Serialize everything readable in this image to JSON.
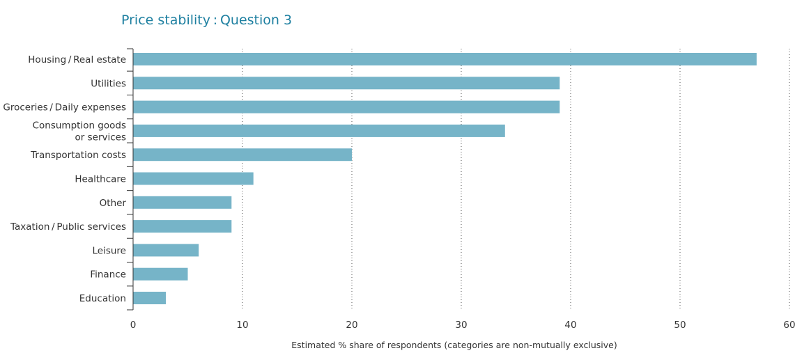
{
  "chart_data": {
    "type": "bar",
    "orientation": "horizontal",
    "title": "Price stability : Question 3",
    "xlabel": "Estimated % share of respondents (categories are non-mutually exclusive)",
    "ylabel": "",
    "categories": [
      [
        "Housing / Real estate"
      ],
      [
        "Utilities"
      ],
      [
        "Groceries / Daily expenses"
      ],
      [
        "Consumption goods",
        "or services"
      ],
      [
        "Transportation costs"
      ],
      [
        "Healthcare"
      ],
      [
        "Other"
      ],
      [
        "Taxation / Public services"
      ],
      [
        "Leisure"
      ],
      [
        "Finance"
      ],
      [
        "Education"
      ]
    ],
    "values": [
      57,
      39,
      39,
      34,
      20,
      11,
      9,
      9,
      6,
      5,
      3
    ],
    "xlim": [
      0,
      60
    ],
    "xticks": [
      0,
      10,
      20,
      30,
      40,
      50,
      60
    ],
    "grid": "vertical dotted",
    "bar_color": "#76b4c8",
    "title_color": "#1d7fa0",
    "axis_color": "#333333",
    "grid_color": "#555555"
  }
}
